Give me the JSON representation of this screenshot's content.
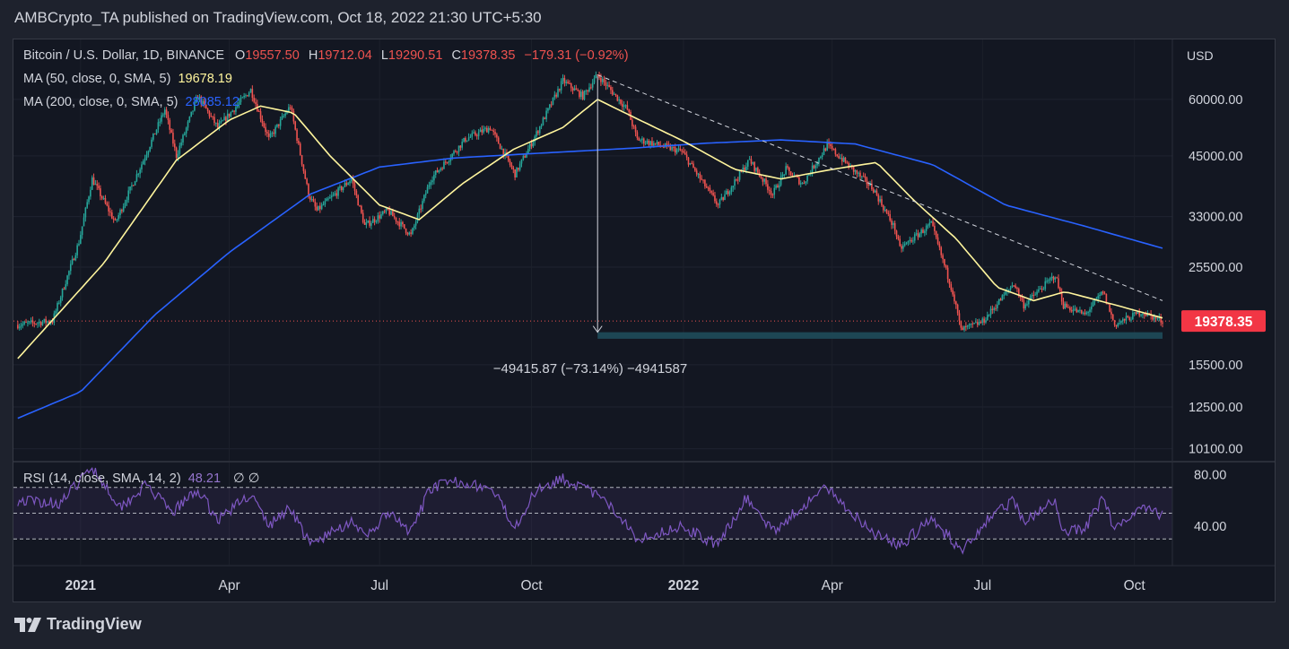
{
  "header": {
    "text": "AMBCrypto_TA published on TradingView.com, Oct 18, 2022 21:30 UTC+5:30"
  },
  "legend": {
    "symbol": "Bitcoin / U.S. Dollar, 1D, BINANCE",
    "o_label": "O",
    "o": "19557.50",
    "h_label": "H",
    "h": "19712.04",
    "l_label": "L",
    "l": "19290.51",
    "c_label": "C",
    "c": "19378.35",
    "change": "−179.31 (−0.92%)",
    "ma50_label": "MA (50, close, 0, SMA, 5)",
    "ma50_value": "19678.19",
    "ma200_label": "MA (200, close, 0, SMA, 5)",
    "ma200_value": "28085.12",
    "rsi_label": "RSI (14, close, SMA, 14, 2)",
    "rsi_value": "48.21",
    "rsi_extra": "∅  ∅"
  },
  "measure_label": "−49415.87 (−73.14%) −4941587",
  "price_tag": "19378.35",
  "brand": {
    "name": "TradingView"
  },
  "colors": {
    "up": "#26a69a",
    "down": "#ef5350",
    "ma50": "#fff59d",
    "ma200": "#2962ff",
    "rsi": "#7e57c2",
    "background": "#131722",
    "price_tag": "#f23645"
  },
  "chart_data": {
    "type": "candlestick",
    "currency": "USD",
    "y_scale": "log",
    "ylim": [
      9500,
      80000
    ],
    "y_ticks": [
      60000,
      45000,
      33000,
      25500,
      15500,
      12500,
      10100
    ],
    "y_tick_labels": [
      "60000.00",
      "45000.00",
      "33000.00",
      "25500.00",
      "15500.00",
      "12500.00",
      "10100.00"
    ],
    "x_labels": [
      {
        "date": "2021-01-01",
        "label": "2021"
      },
      {
        "date": "2021-04-01",
        "label": "Apr"
      },
      {
        "date": "2021-07-01",
        "label": "Jul"
      },
      {
        "date": "2021-10-01",
        "label": "Oct"
      },
      {
        "date": "2022-01-01",
        "label": "2022"
      },
      {
        "date": "2022-04-01",
        "label": "Apr"
      },
      {
        "date": "2022-07-01",
        "label": "Jul"
      },
      {
        "date": "2022-10-01",
        "label": "Oct"
      }
    ],
    "price_path": [
      [
        "2020-11-24",
        19000
      ],
      [
        "2020-12-15",
        19400
      ],
      [
        "2020-12-31",
        29000
      ],
      [
        "2021-01-08",
        40000
      ],
      [
        "2021-01-22",
        32000
      ],
      [
        "2021-02-08",
        44000
      ],
      [
        "2021-02-21",
        57000
      ],
      [
        "2021-02-28",
        45000
      ],
      [
        "2021-03-13",
        61000
      ],
      [
        "2021-03-25",
        52000
      ],
      [
        "2021-04-14",
        63000
      ],
      [
        "2021-04-25",
        49000
      ],
      [
        "2021-05-08",
        58000
      ],
      [
        "2021-05-19",
        37000
      ],
      [
        "2021-05-24",
        34000
      ],
      [
        "2021-06-14",
        40000
      ],
      [
        "2021-06-22",
        31500
      ],
      [
        "2021-07-06",
        34000
      ],
      [
        "2021-07-20",
        30000
      ],
      [
        "2021-08-01",
        40000
      ],
      [
        "2021-08-22",
        49000
      ],
      [
        "2021-09-06",
        52000
      ],
      [
        "2021-09-21",
        41000
      ],
      [
        "2021-10-01",
        48000
      ],
      [
        "2021-10-20",
        66000
      ],
      [
        "2021-11-01",
        61000
      ],
      [
        "2021-11-10",
        68000
      ],
      [
        "2021-11-28",
        57000
      ],
      [
        "2021-12-04",
        49000
      ],
      [
        "2021-12-31",
        46000
      ],
      [
        "2022-01-22",
        35000
      ],
      [
        "2022-02-10",
        44000
      ],
      [
        "2022-02-24",
        37000
      ],
      [
        "2022-03-04",
        42000
      ],
      [
        "2022-03-14",
        39000
      ],
      [
        "2022-03-29",
        47500
      ],
      [
        "2022-04-26",
        38000
      ],
      [
        "2022-05-09",
        31000
      ],
      [
        "2022-05-12",
        28000
      ],
      [
        "2022-05-31",
        31800
      ],
      [
        "2022-06-13",
        22500
      ],
      [
        "2022-06-18",
        18500
      ],
      [
        "2022-07-01",
        19300
      ],
      [
        "2022-07-20",
        23500
      ],
      [
        "2022-07-26",
        21000
      ],
      [
        "2022-08-14",
        24500
      ],
      [
        "2022-08-19",
        21000
      ],
      [
        "2022-09-01",
        20000
      ],
      [
        "2022-09-12",
        22500
      ],
      [
        "2022-09-19",
        19000
      ],
      [
        "2022-10-05",
        20300
      ],
      [
        "2022-10-18",
        19378
      ]
    ],
    "ma50_path": [
      [
        "2020-11-24",
        16000
      ],
      [
        "2021-01-15",
        26000
      ],
      [
        "2021-02-28",
        44000
      ],
      [
        "2021-04-01",
        54000
      ],
      [
        "2021-04-20",
        58000
      ],
      [
        "2021-05-10",
        56000
      ],
      [
        "2021-06-01",
        45000
      ],
      [
        "2021-07-01",
        35000
      ],
      [
        "2021-07-25",
        32500
      ],
      [
        "2021-08-20",
        39000
      ],
      [
        "2021-09-20",
        46500
      ],
      [
        "2021-10-20",
        52000
      ],
      [
        "2021-11-10",
        60000
      ],
      [
        "2021-12-01",
        55000
      ],
      [
        "2022-01-01",
        48500
      ],
      [
        "2022-02-01",
        42000
      ],
      [
        "2022-03-01",
        40000
      ],
      [
        "2022-04-01",
        42000
      ],
      [
        "2022-04-28",
        43500
      ],
      [
        "2022-05-20",
        36000
      ],
      [
        "2022-06-15",
        29500
      ],
      [
        "2022-07-10",
        23000
      ],
      [
        "2022-08-01",
        21500
      ],
      [
        "2022-08-20",
        22500
      ],
      [
        "2022-09-20",
        21000
      ],
      [
        "2022-10-18",
        19678
      ]
    ],
    "ma200_path": [
      [
        "2020-11-24",
        11800
      ],
      [
        "2021-01-01",
        13500
      ],
      [
        "2021-02-15",
        20000
      ],
      [
        "2021-04-01",
        27500
      ],
      [
        "2021-05-20",
        37000
      ],
      [
        "2021-07-01",
        42500
      ],
      [
        "2021-08-15",
        44500
      ],
      [
        "2021-10-01",
        45500
      ],
      [
        "2021-12-01",
        46800
      ],
      [
        "2022-01-15",
        48000
      ],
      [
        "2022-03-01",
        48800
      ],
      [
        "2022-04-15",
        47800
      ],
      [
        "2022-06-01",
        43000
      ],
      [
        "2022-07-15",
        35000
      ],
      [
        "2022-08-31",
        31500
      ],
      [
        "2022-10-18",
        28085
      ]
    ],
    "annotations": {
      "trendline": {
        "from": [
          "2021-11-10",
          68000
        ],
        "to": [
          "2022-10-18",
          21500
        ],
        "style": "dashed"
      },
      "measure": {
        "from": [
          "2021-11-10",
          67500
        ],
        "to": [
          "2021-11-10",
          18300
        ],
        "label": "−49415.87 (−73.14%) −4941587"
      },
      "support_zone": {
        "from_date": "2021-11-10",
        "to_date": "2022-10-18",
        "low": 17700,
        "high": 18300
      },
      "current_price_line": 19378.35
    },
    "rsi": {
      "ylim": [
        10,
        90
      ],
      "y_ticks": [
        80,
        40
      ],
      "y_tick_labels": [
        "80.00",
        "40.00"
      ],
      "bands": [
        70,
        50,
        30
      ],
      "last": 48.21,
      "path": [
        [
          "2020-11-24",
          60
        ],
        [
          "2020-12-20",
          58
        ],
        [
          "2021-01-08",
          86
        ],
        [
          "2021-01-25",
          55
        ],
        [
          "2021-02-10",
          72
        ],
        [
          "2021-02-25",
          50
        ],
        [
          "2021-03-13",
          68
        ],
        [
          "2021-03-25",
          45
        ],
        [
          "2021-04-14",
          65
        ],
        [
          "2021-04-25",
          40
        ],
        [
          "2021-05-08",
          55
        ],
        [
          "2021-05-20",
          25
        ],
        [
          "2021-06-15",
          45
        ],
        [
          "2021-06-22",
          30
        ],
        [
          "2021-07-06",
          50
        ],
        [
          "2021-07-20",
          35
        ],
        [
          "2021-08-01",
          70
        ],
        [
          "2021-08-20",
          75
        ],
        [
          "2021-09-07",
          68
        ],
        [
          "2021-09-21",
          40
        ],
        [
          "2021-10-05",
          70
        ],
        [
          "2021-10-20",
          77
        ],
        [
          "2021-11-10",
          64
        ],
        [
          "2021-11-28",
          42
        ],
        [
          "2021-12-04",
          30
        ],
        [
          "2021-12-31",
          40
        ],
        [
          "2022-01-22",
          25
        ],
        [
          "2022-02-08",
          62
        ],
        [
          "2022-02-24",
          36
        ],
        [
          "2022-03-28",
          70
        ],
        [
          "2022-04-26",
          35
        ],
        [
          "2022-05-12",
          25
        ],
        [
          "2022-05-31",
          45
        ],
        [
          "2022-06-18",
          22
        ],
        [
          "2022-07-08",
          50
        ],
        [
          "2022-07-20",
          60
        ],
        [
          "2022-07-26",
          42
        ],
        [
          "2022-08-14",
          60
        ],
        [
          "2022-08-19",
          35
        ],
        [
          "2022-09-01",
          38
        ],
        [
          "2022-09-12",
          62
        ],
        [
          "2022-09-19",
          38
        ],
        [
          "2022-10-05",
          56
        ],
        [
          "2022-10-18",
          48.21
        ]
      ]
    }
  }
}
